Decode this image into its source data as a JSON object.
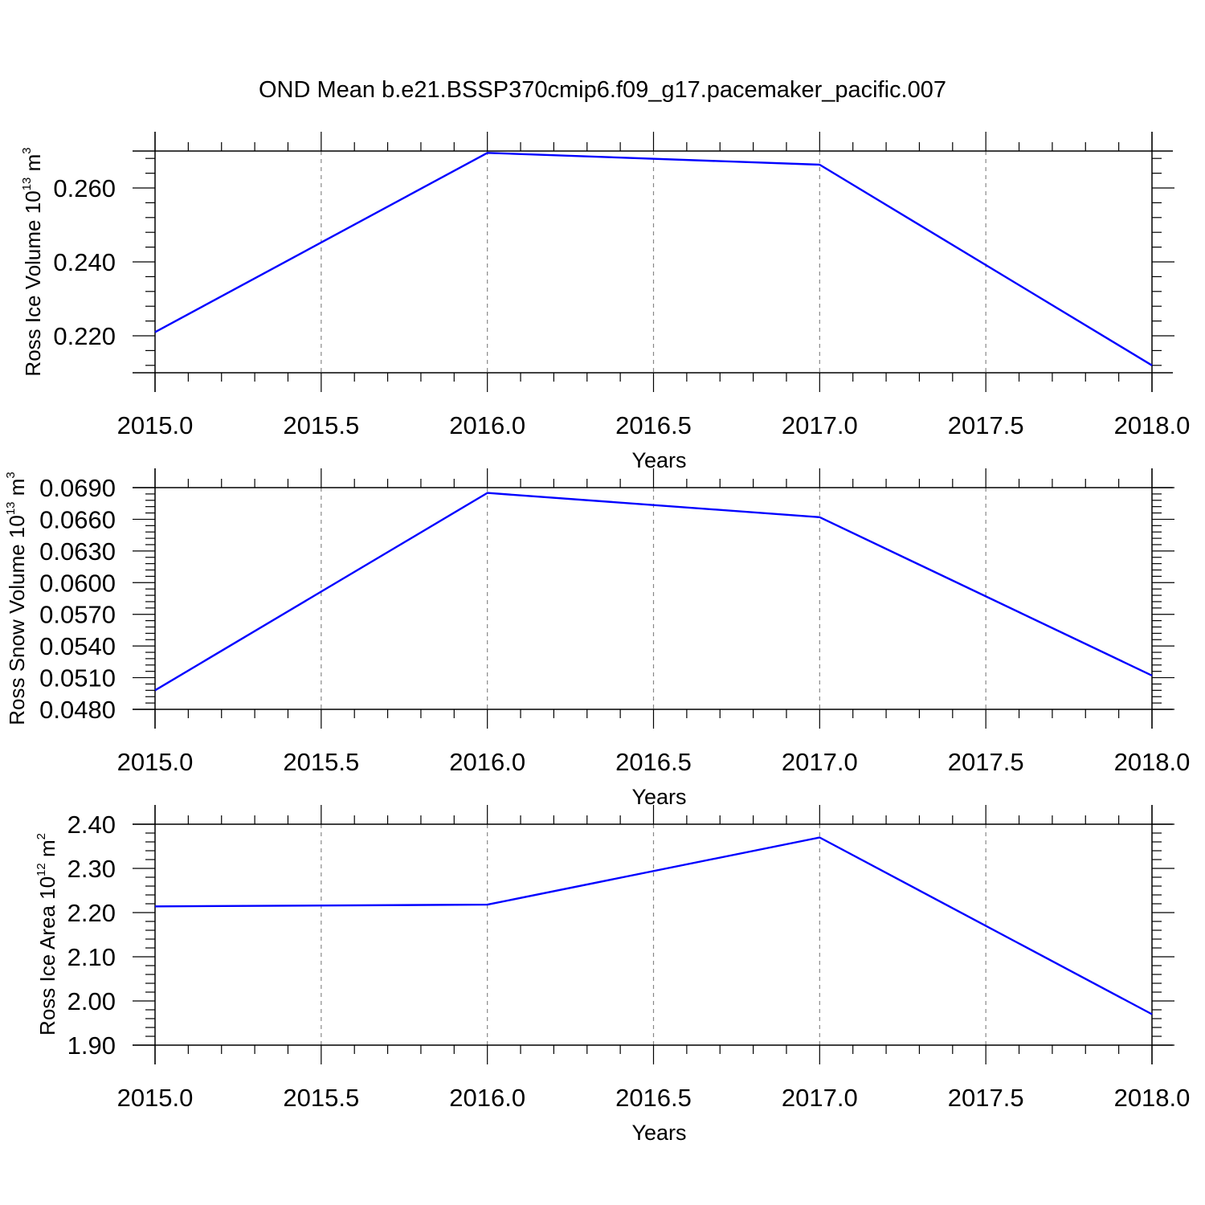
{
  "title": "OND Mean b.e21.BSSP370cmip6.f09_g17.pacemaker_pacific.007",
  "colors": {
    "line": "#0000ff",
    "axis": "#000000",
    "grid": "#888888"
  },
  "chart_data": [
    {
      "type": "line",
      "title": "OND Mean b.e21.BSSP370cmip6.f09_g17.pacemaker_pacific.007",
      "xlabel": "Years",
      "ylabel": {
        "text": "Ross Ice Volume 10",
        "exp1": "13",
        "mid": " m",
        "exp2": "3"
      },
      "x": [
        2015.0,
        2016.0,
        2017.0,
        2018.0
      ],
      "series": [
        {
          "values": [
            0.221,
            0.2695,
            0.2663,
            0.212
          ]
        }
      ],
      "xlim": [
        2015.0,
        2018.0
      ],
      "ylim": [
        0.21,
        0.27
      ],
      "xticks": [
        "2015.0",
        "2015.5",
        "2016.0",
        "2016.5",
        "2017.0",
        "2017.5",
        "2018.0"
      ],
      "yticks": [
        "0.220",
        "0.240",
        "0.260"
      ],
      "grid": "vertical dashed at major x ticks"
    },
    {
      "type": "line",
      "xlabel": "Years",
      "ylabel": {
        "text": "Ross Snow Volume 10",
        "exp1": "13",
        "mid": " m",
        "exp2": "3"
      },
      "x": [
        2015.0,
        2016.0,
        2017.0,
        2018.0
      ],
      "series": [
        {
          "values": [
            0.0498,
            0.0685,
            0.0662,
            0.0512
          ]
        }
      ],
      "xlim": [
        2015.0,
        2018.0
      ],
      "ylim": [
        0.048,
        0.069
      ],
      "xticks": [
        "2015.0",
        "2015.5",
        "2016.0",
        "2016.5",
        "2017.0",
        "2017.5",
        "2018.0"
      ],
      "yticks": [
        "0.0480",
        "0.0510",
        "0.0540",
        "0.0570",
        "0.0600",
        "0.0630",
        "0.0660",
        "0.0690"
      ],
      "grid": "vertical dashed at major x ticks"
    },
    {
      "type": "line",
      "xlabel": "Years",
      "ylabel": {
        "text": "Ross Ice Area 10",
        "exp1": "12",
        "mid": " m",
        "exp2": "2"
      },
      "x": [
        2015.0,
        2016.0,
        2017.0,
        2018.0
      ],
      "series": [
        {
          "values": [
            2.214,
            2.218,
            2.37,
            1.97
          ]
        }
      ],
      "xlim": [
        2015.0,
        2018.0
      ],
      "ylim": [
        1.9,
        2.4
      ],
      "xticks": [
        "2015.0",
        "2015.5",
        "2016.0",
        "2016.5",
        "2017.0",
        "2017.5",
        "2018.0"
      ],
      "yticks": [
        "1.90",
        "2.00",
        "2.10",
        "2.20",
        "2.30",
        "2.40"
      ],
      "grid": "vertical dashed at major x ticks"
    }
  ]
}
